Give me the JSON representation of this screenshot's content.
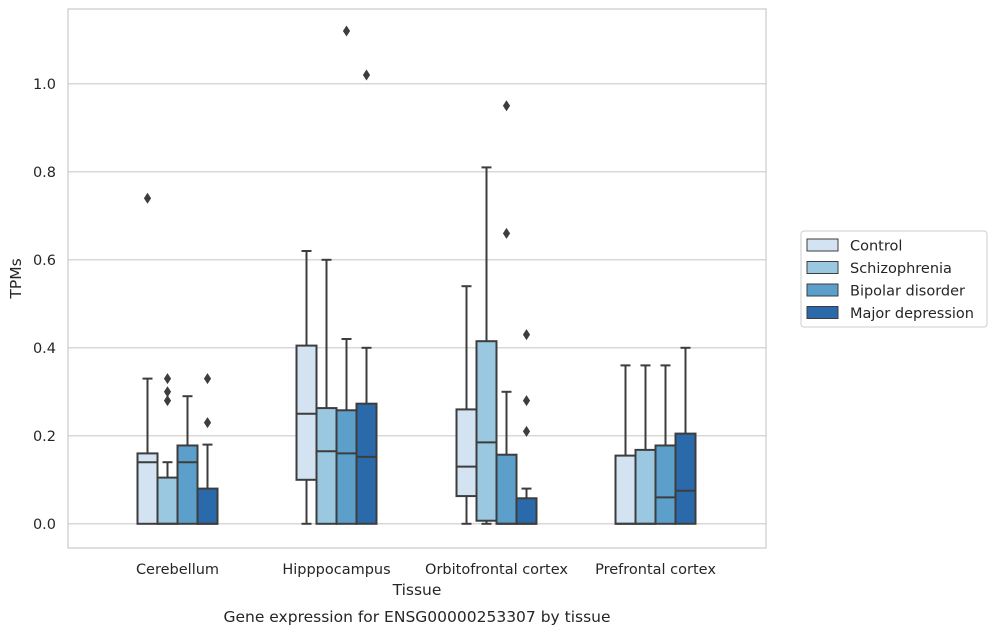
{
  "chart_data": {
    "type": "box",
    "title": "Gene expression for ENSG00000253307 by tissue",
    "xlabel": "Tissue",
    "ylabel": "TPMs",
    "ylim": [
      -0.055,
      1.17
    ],
    "y_ticks": [
      "0.0",
      "0.2",
      "0.4",
      "0.6",
      "0.8",
      "1.0"
    ],
    "y_tick_values": [
      0.0,
      0.2,
      0.4,
      0.6,
      0.8,
      1.0
    ],
    "grid": "horizontal",
    "legend_position": "right",
    "categories": [
      "Cerebellum",
      "Hipppocampus",
      "Orbitofrontal cortex",
      "Prefrontal cortex"
    ],
    "series": [
      {
        "name": "Control",
        "color": "#d3e3f1",
        "boxes": [
          {
            "whisker_low": 0.0,
            "q1": 0.0,
            "median": 0.14,
            "q3": 0.16,
            "whisker_high": 0.33,
            "outliers": [
              0.74
            ]
          },
          {
            "whisker_low": 0.0,
            "q1": 0.1,
            "median": 0.25,
            "q3": 0.405,
            "whisker_high": 0.62,
            "outliers": []
          },
          {
            "whisker_low": 0.0,
            "q1": 0.063,
            "median": 0.13,
            "q3": 0.26,
            "whisker_high": 0.54,
            "outliers": []
          },
          {
            "whisker_low": 0.0,
            "q1": 0.0,
            "median": 0.0,
            "q3": 0.155,
            "whisker_high": 0.36,
            "outliers": []
          }
        ]
      },
      {
        "name": "Schizophrenia",
        "color": "#9ac8e0",
        "boxes": [
          {
            "whisker_low": 0.0,
            "q1": 0.0,
            "median": 0.0,
            "q3": 0.105,
            "whisker_high": 0.14,
            "outliers": [
              0.28,
              0.3,
              0.33
            ]
          },
          {
            "whisker_low": 0.0,
            "q1": 0.0,
            "median": 0.165,
            "q3": 0.263,
            "whisker_high": 0.6,
            "outliers": []
          },
          {
            "whisker_low": 0.0,
            "q1": 0.007,
            "median": 0.185,
            "q3": 0.415,
            "whisker_high": 0.81,
            "outliers": []
          },
          {
            "whisker_low": 0.0,
            "q1": 0.0,
            "median": 0.0,
            "q3": 0.168,
            "whisker_high": 0.36,
            "outliers": []
          }
        ]
      },
      {
        "name": "Bipolar disorder",
        "color": "#5c9fcb",
        "boxes": [
          {
            "whisker_low": 0.0,
            "q1": 0.0,
            "median": 0.14,
            "q3": 0.178,
            "whisker_high": 0.29,
            "outliers": []
          },
          {
            "whisker_low": 0.0,
            "q1": 0.0,
            "median": 0.16,
            "q3": 0.258,
            "whisker_high": 0.42,
            "outliers": [
              1.12
            ]
          },
          {
            "whisker_low": 0.0,
            "q1": 0.0,
            "median": 0.0,
            "q3": 0.157,
            "whisker_high": 0.3,
            "outliers": [
              0.66,
              0.95
            ]
          },
          {
            "whisker_low": 0.0,
            "q1": 0.0,
            "median": 0.06,
            "q3": 0.178,
            "whisker_high": 0.36,
            "outliers": []
          }
        ]
      },
      {
        "name": "Major depression",
        "color": "#2a6aab",
        "boxes": [
          {
            "whisker_low": 0.0,
            "q1": 0.0,
            "median": 0.0,
            "q3": 0.08,
            "whisker_high": 0.18,
            "outliers": [
              0.23,
              0.33
            ]
          },
          {
            "whisker_low": 0.0,
            "q1": 0.0,
            "median": 0.152,
            "q3": 0.273,
            "whisker_high": 0.4,
            "outliers": [
              1.02
            ]
          },
          {
            "whisker_low": 0.0,
            "q1": 0.0,
            "median": 0.0,
            "q3": 0.058,
            "whisker_high": 0.08,
            "outliers": [
              0.21,
              0.28,
              0.43
            ]
          },
          {
            "whisker_low": 0.0,
            "q1": 0.0,
            "median": 0.075,
            "q3": 0.205,
            "whisker_high": 0.4,
            "outliers": []
          }
        ]
      }
    ]
  }
}
